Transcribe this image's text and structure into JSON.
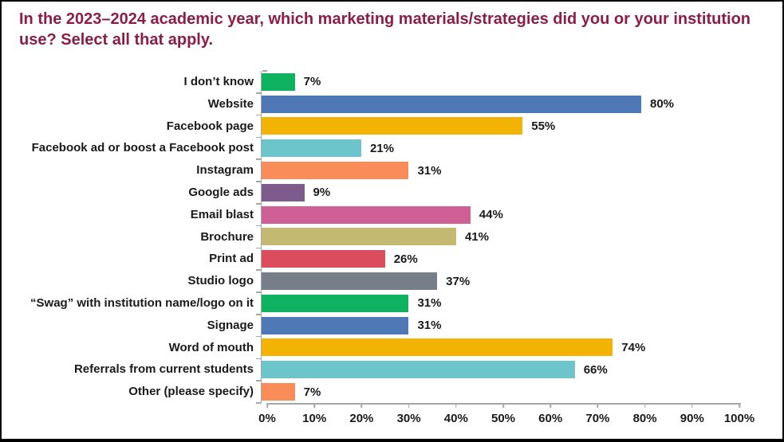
{
  "window": {
    "background": "#FFFFFF",
    "border_color": "#000000"
  },
  "title": {
    "text": "In the 2023–2024 academic year, which marketing materials/strategies did you or your institution use? Select all that apply.",
    "color": "#8C1D47"
  },
  "chart_data": {
    "type": "bar",
    "orientation": "horizontal",
    "title": "In the 2023–2024 academic year, which marketing materials/strategies did you or your institution use? Select all that apply.",
    "categories": [
      "I don’t know",
      "Website",
      "Facebook page",
      "Facebook ad or boost a Facebook post",
      "Instagram",
      "Google ads",
      "Email blast",
      "Brochure",
      "Print ad",
      "Studio logo",
      "“Swag” with institution name/logo on it",
      "Signage",
      "Word of mouth",
      "Referrals from current students",
      "Other (please specify)"
    ],
    "values": [
      7,
      80,
      55,
      21,
      31,
      9,
      44,
      41,
      26,
      37,
      31,
      31,
      74,
      66,
      7
    ],
    "value_suffix": "%",
    "colors": [
      "#0FB35F",
      "#4E79B6",
      "#F2B305",
      "#6CC5CB",
      "#F98C58",
      "#7D5C8D",
      "#CF6096",
      "#C4B971",
      "#DC4C5F",
      "#767E89",
      "#0FB35F",
      "#4E79B6",
      "#F2B305",
      "#6CC5CB",
      "#F98C58"
    ],
    "xlabel": "",
    "ylabel": "",
    "xlim": [
      0,
      100
    ],
    "xticks": [
      "0%",
      "10%",
      "20%",
      "30%",
      "40%",
      "50%",
      "60%",
      "70%",
      "80%",
      "90%",
      "100%"
    ],
    "grid": false,
    "legend": null,
    "axis_color": "#A6A6A6",
    "label_color": "#1A1A1A"
  }
}
